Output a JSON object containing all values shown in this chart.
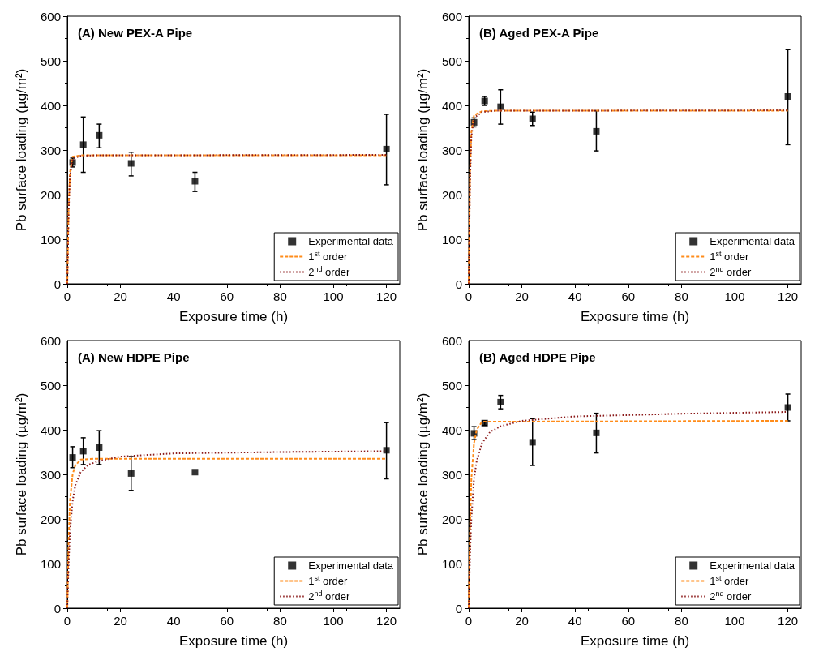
{
  "chart_data": [
    {
      "type": "scatter",
      "title": "(A) New PEX-A Pipe",
      "xlabel": "Exposure time (h)",
      "ylabel": "Pb surface loading (µg/m²)",
      "xlim": [
        0,
        125
      ],
      "xticks": [
        0,
        20,
        40,
        60,
        80,
        100,
        120
      ],
      "ylim": [
        0,
        600
      ],
      "yticks": [
        0,
        100,
        200,
        300,
        400,
        500,
        600
      ],
      "grid": false,
      "legend": "bottom right",
      "series": [
        {
          "name": "Experimental data",
          "type": "scatter",
          "marker": "square",
          "color": "#000000",
          "x": [
            2,
            6,
            12,
            24,
            48,
            120
          ],
          "values": [
            272,
            312,
            333,
            270,
            230,
            302
          ],
          "errors": [
            [
              262,
              282
            ],
            [
              250,
              374
            ],
            [
              305,
              358
            ],
            [
              242,
              295
            ],
            [
              207,
              250
            ],
            [
              222,
              380
            ]
          ]
        },
        {
          "name": "1$^{st}$ order",
          "type": "line",
          "marker": "none",
          "line_style": "dashed",
          "color": "#ff8c1a",
          "x": [
            0,
            0.5,
            1,
            2,
            5,
            10,
            120
          ],
          "values": [
            0,
            170,
            250,
            285,
            288,
            288,
            288
          ]
        },
        {
          "name": "2$^{nd}$ order",
          "type": "line",
          "marker": "none",
          "line_style": "dotted",
          "color": "#8b1a1a",
          "x": [
            0,
            0.5,
            1,
            2,
            5,
            10,
            120
          ],
          "values": [
            0,
            160,
            240,
            280,
            287,
            288,
            289
          ]
        }
      ]
    },
    {
      "type": "scatter",
      "title": "(B) Aged PEX-A Pipe",
      "xlabel": "Exposure time (h)",
      "ylabel": "Pb surface loading (µg/m²)",
      "xlim": [
        0,
        125
      ],
      "xticks": [
        0,
        20,
        40,
        60,
        80,
        100,
        120
      ],
      "ylim": [
        0,
        600
      ],
      "yticks": [
        0,
        100,
        200,
        300,
        400,
        500,
        600
      ],
      "grid": false,
      "legend": "bottom right",
      "series": [
        {
          "name": "Experimental data",
          "type": "scatter",
          "marker": "square",
          "color": "#000000",
          "x": [
            2,
            6,
            12,
            24,
            48,
            120
          ],
          "values": [
            362,
            410,
            397,
            370,
            342,
            420
          ],
          "errors": [
            [
              352,
              372
            ],
            [
              400,
              420
            ],
            [
              358,
              435
            ],
            [
              355,
              385
            ],
            [
              298,
              388
            ],
            [
              312,
              525
            ]
          ]
        },
        {
          "name": "1$^{st}$ order",
          "type": "line",
          "marker": "none",
          "line_style": "dashed",
          "color": "#ff8c1a",
          "x": [
            0,
            0.5,
            1,
            2,
            5,
            10,
            120
          ],
          "values": [
            0,
            250,
            340,
            378,
            387,
            388,
            388
          ]
        },
        {
          "name": "2$^{nd}$ order",
          "type": "line",
          "marker": "none",
          "line_style": "dotted",
          "color": "#8b1a1a",
          "x": [
            0,
            0.5,
            1,
            2,
            5,
            10,
            120
          ],
          "values": [
            0,
            230,
            330,
            372,
            385,
            388,
            389
          ]
        }
      ]
    },
    {
      "type": "scatter",
      "title": "(A) New HDPE Pipe",
      "xlabel": "Exposure time (h)",
      "ylabel": "Pb surface loading (µg/m²)",
      "xlim": [
        0,
        125
      ],
      "xticks": [
        0,
        20,
        40,
        60,
        80,
        100,
        120
      ],
      "ylim": [
        0,
        600
      ],
      "yticks": [
        0,
        100,
        200,
        300,
        400,
        500,
        600
      ],
      "grid": false,
      "legend": "bottom right",
      "series": [
        {
          "name": "Experimental data",
          "type": "scatter",
          "marker": "square",
          "color": "#000000",
          "x": [
            2,
            6,
            12,
            24,
            48,
            120
          ],
          "values": [
            338,
            352,
            360,
            302,
            305,
            354
          ],
          "errors": [
            [
              315,
              362
            ],
            [
              322,
              382
            ],
            [
              322,
              398
            ],
            [
              264,
              340
            ],
            null,
            [
              290,
              416
            ]
          ]
        },
        {
          "name": "1$^{st}$ order",
          "type": "line",
          "marker": "none",
          "line_style": "dashed",
          "color": "#ff8c1a",
          "x": [
            0,
            0.5,
            1,
            2,
            3,
            5,
            10,
            120
          ],
          "values": [
            0,
            150,
            240,
            300,
            320,
            333,
            335,
            335
          ]
        },
        {
          "name": "2$^{nd}$ order",
          "type": "line",
          "marker": "none",
          "line_style": "dotted",
          "color": "#8b1a1a",
          "x": [
            0,
            0.5,
            1,
            2,
            3,
            5,
            8,
            12,
            20,
            40,
            80,
            120
          ],
          "values": [
            0,
            100,
            170,
            240,
            275,
            305,
            322,
            330,
            340,
            347,
            350,
            352
          ]
        }
      ]
    },
    {
      "type": "scatter",
      "title": "(B) Aged HDPE Pipe",
      "xlabel": "Exposure time (h)",
      "ylabel": "Pb surface loading (µg/m²)",
      "xlim": [
        0,
        125
      ],
      "xticks": [
        0,
        20,
        40,
        60,
        80,
        100,
        120
      ],
      "ylim": [
        0,
        600
      ],
      "yticks": [
        0,
        100,
        200,
        300,
        400,
        500,
        600
      ],
      "grid": false,
      "legend": "bottom right",
      "series": [
        {
          "name": "Experimental data",
          "type": "scatter",
          "marker": "square",
          "color": "#000000",
          "x": [
            2,
            6,
            12,
            24,
            48,
            120
          ],
          "values": [
            392,
            415,
            462,
            372,
            393,
            450
          ],
          "errors": [
            [
              378,
              407
            ],
            [
              410,
              420
            ],
            [
              447,
              477
            ],
            [
              320,
              425
            ],
            [
              348,
              437
            ],
            [
              420,
              480
            ]
          ]
        },
        {
          "name": "1$^{st}$ order",
          "type": "line",
          "marker": "none",
          "line_style": "dashed",
          "color": "#ff8c1a",
          "x": [
            0,
            0.5,
            1,
            2,
            3,
            5,
            120
          ],
          "values": [
            0,
            180,
            290,
            370,
            400,
            418,
            420
          ]
        },
        {
          "name": "2$^{nd}$ order",
          "type": "line",
          "marker": "none",
          "line_style": "dotted",
          "color": "#8b1a1a",
          "x": [
            0,
            0.5,
            1,
            2,
            3,
            5,
            8,
            12,
            20,
            40,
            80,
            120
          ],
          "values": [
            0,
            120,
            200,
            290,
            330,
            370,
            395,
            408,
            420,
            430,
            436,
            440
          ]
        }
      ]
    }
  ]
}
